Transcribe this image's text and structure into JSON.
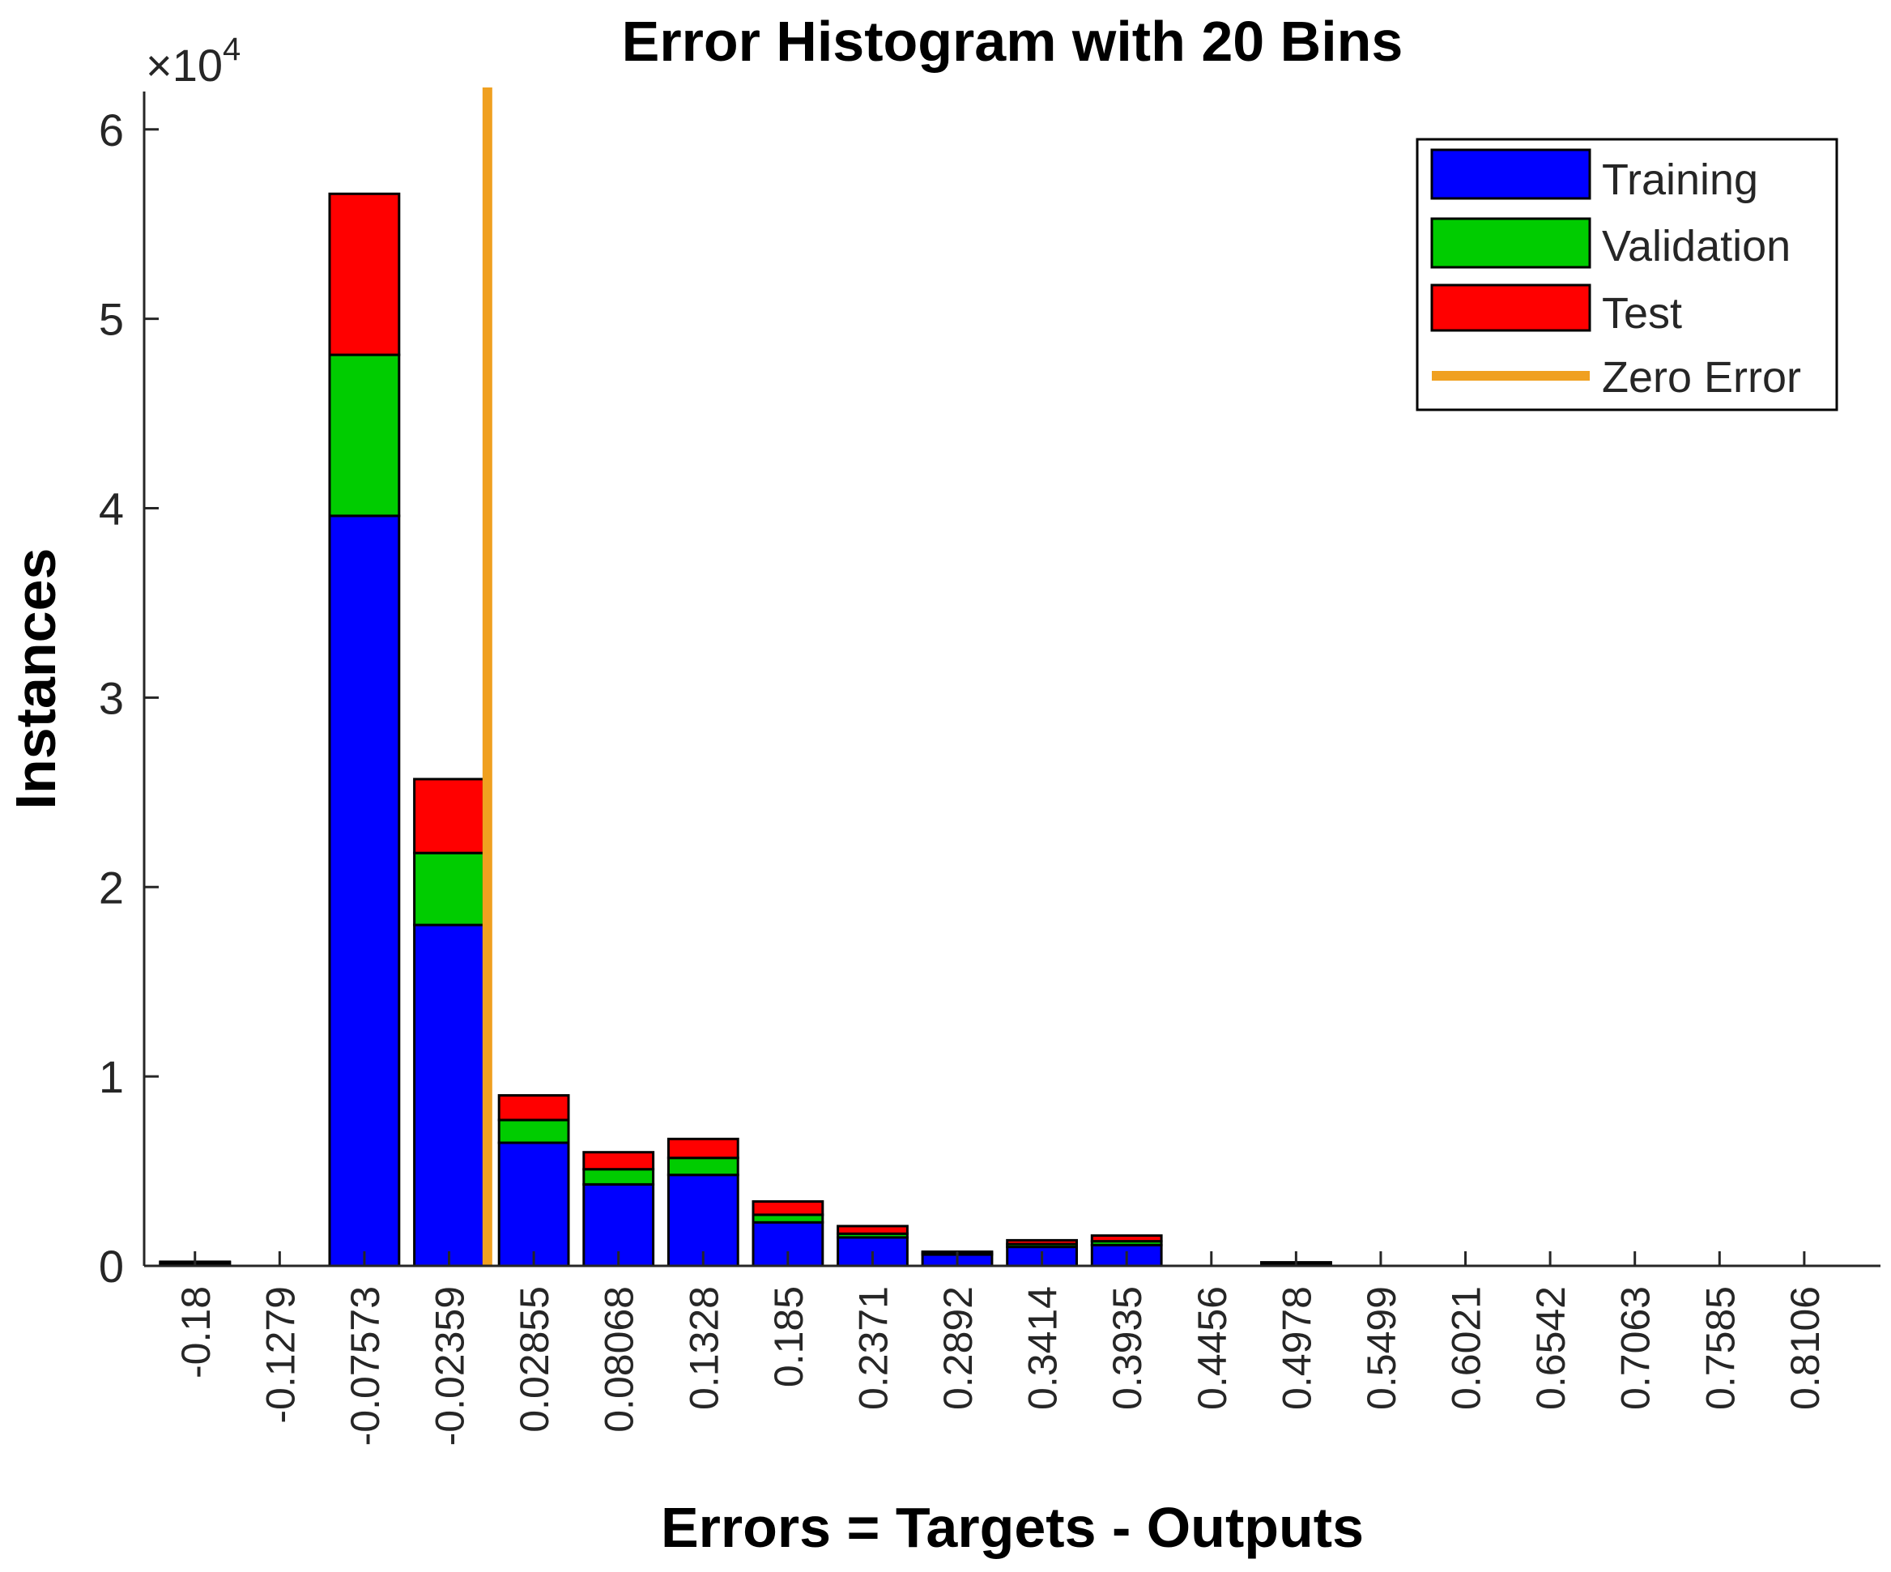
{
  "chart_data": {
    "type": "bar",
    "stacked": true,
    "title": "Error Histogram with 20 Bins",
    "xlabel": "Errors = Targets - Outputs",
    "ylabel": "Instances",
    "y_exponent_label": "×10",
    "y_exponent_power": "4",
    "y_multiplier": 10000,
    "ylim": [
      0,
      62000
    ],
    "yticks": [
      0,
      10000,
      20000,
      30000,
      40000,
      50000,
      60000
    ],
    "ytick_labels": [
      "0",
      "1",
      "2",
      "3",
      "4",
      "5",
      "6"
    ],
    "categories": [
      "-0.18",
      "-0.1279",
      "-0.07573",
      "-0.02359",
      "0.02855",
      "0.08068",
      "0.1328",
      "0.185",
      "0.2371",
      "0.2892",
      "0.3414",
      "0.3935",
      "0.4456",
      "0.4978",
      "0.5499",
      "0.6021",
      "0.6542",
      "0.7063",
      "0.7585",
      "0.8106"
    ],
    "series": [
      {
        "name": "Training",
        "color": "#0000ff",
        "values": [
          180,
          0,
          39600,
          18000,
          6500,
          4300,
          4800,
          2300,
          1500,
          600,
          1000,
          1100,
          0,
          150,
          0,
          0,
          0,
          0,
          0,
          0
        ]
      },
      {
        "name": "Validation",
        "color": "#00cc00",
        "values": [
          20,
          0,
          8500,
          3800,
          1200,
          800,
          900,
          400,
          200,
          80,
          150,
          200,
          0,
          20,
          0,
          0,
          0,
          0,
          0,
          0
        ]
      },
      {
        "name": "Test",
        "color": "#ff0000",
        "values": [
          20,
          0,
          8500,
          3900,
          1300,
          900,
          1000,
          700,
          400,
          70,
          200,
          300,
          0,
          20,
          0,
          0,
          0,
          0,
          0,
          0
        ]
      }
    ],
    "zero_error": {
      "name": "Zero Error",
      "x": 0,
      "color": "#f0a020"
    },
    "legend_position": "top-right",
    "grid": false
  }
}
